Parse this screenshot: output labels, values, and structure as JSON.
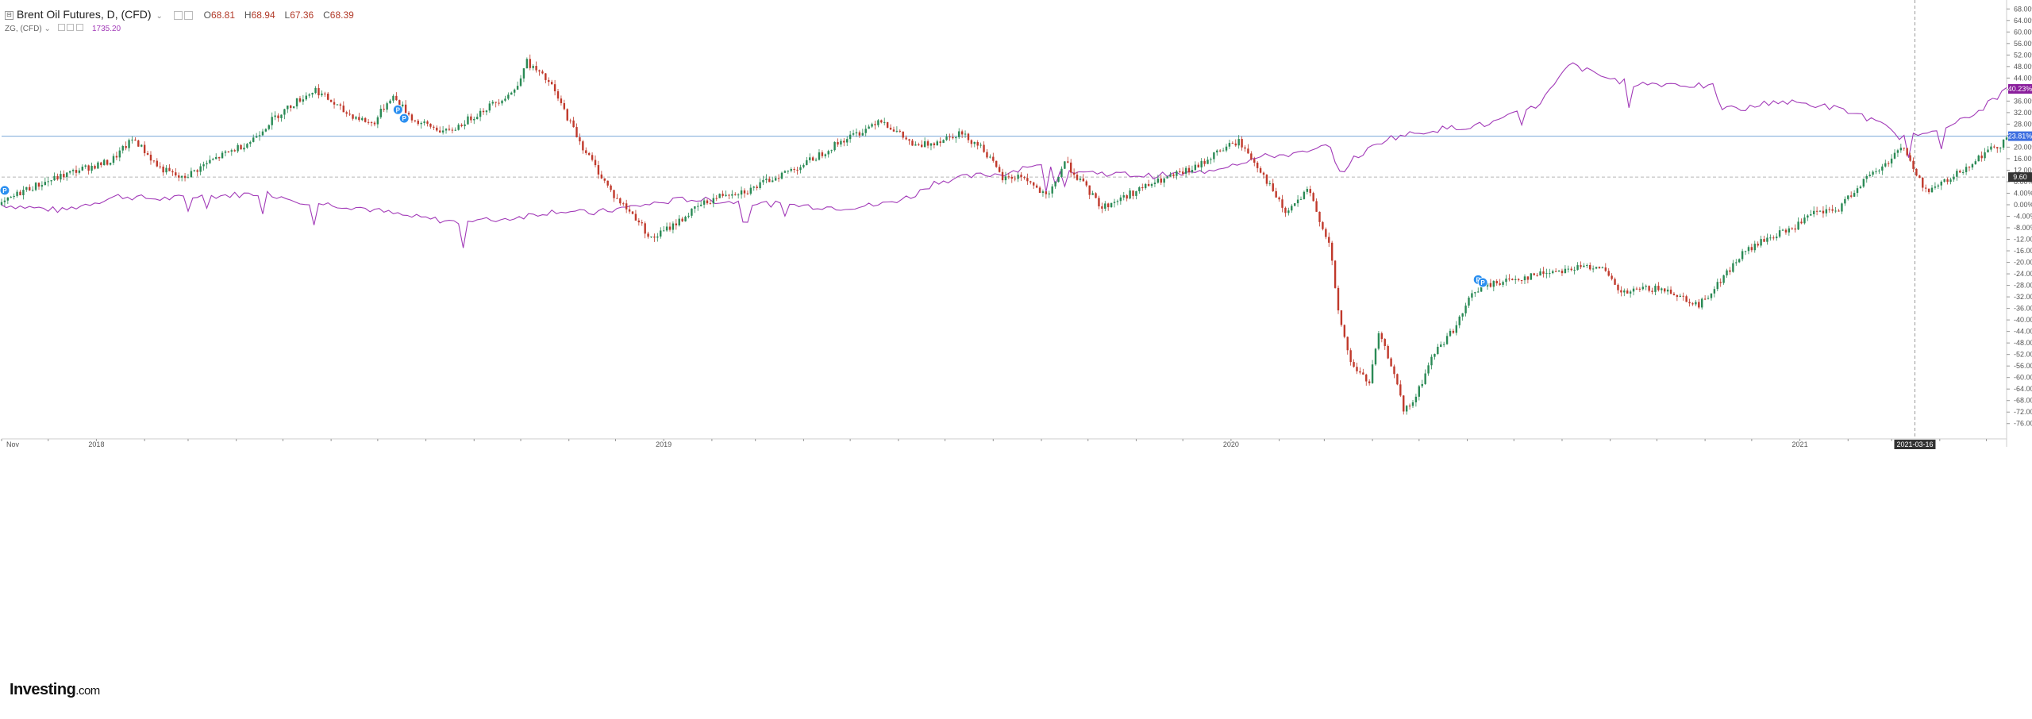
{
  "header": {
    "title": "Brent Oil Futures, D, (CFD)",
    "collapse_symbol": "⊟",
    "ohlc": [
      {
        "label": "O",
        "value": "68.81"
      },
      {
        "label": "H",
        "value": "68.94"
      },
      {
        "label": "L",
        "value": "67.36"
      },
      {
        "label": "C",
        "value": "68.39"
      }
    ],
    "compare_label": "ZG, (CFD)",
    "compare_value": "1735.20"
  },
  "logo": {
    "brand": "Investing",
    "domain": ".com"
  },
  "colors": {
    "up_candle": "#2a8a55",
    "down_candle": "#c0392b",
    "compare_line": "#a23ab8",
    "last_line": "#7aa8d8",
    "badge_blue": "#3d6ee0",
    "badge_purple": "#8a1e9c",
    "badge_dark": "#333333",
    "grid_axis": "#555555",
    "event_marker": "#2b8ff0"
  },
  "chart_data": {
    "type": "candlestick",
    "xlabel": "",
    "ylabel": "",
    "x_range": [
      "2017-11-01",
      "2021-05-14"
    ],
    "ylim": [
      -78,
      70
    ],
    "y_unit": "%",
    "y_ticks": [
      "68.00%",
      "64.00%",
      "60.00%",
      "56.00%",
      "52.00%",
      "48.00%",
      "44.00%",
      "40.00%",
      "36.00%",
      "32.00%",
      "28.00%",
      "24.00%",
      "20.00%",
      "16.00%",
      "12.00%",
      "8.00%",
      "4.00%",
      "0.00%",
      "-4.00%",
      "-8.00%",
      "-12.00%",
      "-16.00%",
      "-20.00%",
      "-24.00%",
      "-28.00%",
      "-32.00%",
      "-36.00%",
      "-40.00%",
      "-44.00%",
      "-48.00%",
      "-52.00%",
      "-56.00%",
      "-60.00%",
      "-64.00%",
      "-68.00%",
      "-72.00%",
      "-76.00%"
    ],
    "x_tick_labels": [
      {
        "date": "2017-11-01",
        "label": "Nov"
      },
      {
        "date": "2018-01-01",
        "label": "2018"
      },
      {
        "date": "2019-01-01",
        "label": "2019"
      },
      {
        "date": "2020-01-01",
        "label": "2020"
      },
      {
        "date": "2021-01-01",
        "label": "2021"
      }
    ],
    "series": [
      {
        "name": "Brent Oil Futures",
        "kind": "candles",
        "anchors": [
          [
            "2017-11-01",
            0
          ],
          [
            "2017-11-15",
            5
          ],
          [
            "2017-12-20",
            12
          ],
          [
            "2018-01-10",
            15
          ],
          [
            "2018-01-25",
            23
          ],
          [
            "2018-02-10",
            13
          ],
          [
            "2018-02-25",
            9
          ],
          [
            "2018-03-15",
            15
          ],
          [
            "2018-04-10",
            22
          ],
          [
            "2018-04-25",
            30
          ],
          [
            "2018-05-10",
            36
          ],
          [
            "2018-05-22",
            40
          ],
          [
            "2018-06-10",
            32
          ],
          [
            "2018-06-28",
            28
          ],
          [
            "2018-07-10",
            38
          ],
          [
            "2018-07-25",
            29
          ],
          [
            "2018-08-15",
            25
          ],
          [
            "2018-09-10",
            34
          ],
          [
            "2018-09-28",
            40
          ],
          [
            "2018-10-04",
            50
          ],
          [
            "2018-10-20",
            42
          ],
          [
            "2018-11-10",
            20
          ],
          [
            "2018-11-30",
            3
          ],
          [
            "2018-12-15",
            -5
          ],
          [
            "2018-12-24",
            -12
          ],
          [
            "2019-01-10",
            -6
          ],
          [
            "2019-01-25",
            0
          ],
          [
            "2019-02-10",
            4
          ],
          [
            "2019-02-25",
            5
          ],
          [
            "2019-03-15",
            10
          ],
          [
            "2019-04-01",
            14
          ],
          [
            "2019-04-25",
            22
          ],
          [
            "2019-05-10",
            26
          ],
          [
            "2019-05-20",
            30
          ],
          [
            "2019-06-12",
            20
          ],
          [
            "2019-06-25",
            22
          ],
          [
            "2019-07-10",
            25
          ],
          [
            "2019-07-25",
            20
          ],
          [
            "2019-08-07",
            9
          ],
          [
            "2019-08-20",
            10
          ],
          [
            "2019-09-05",
            2
          ],
          [
            "2019-09-16",
            15
          ],
          [
            "2019-09-28",
            7
          ],
          [
            "2019-10-10",
            -1
          ],
          [
            "2019-10-25",
            3
          ],
          [
            "2019-11-10",
            7
          ],
          [
            "2019-11-25",
            10
          ],
          [
            "2019-12-10",
            13
          ],
          [
            "2019-12-25",
            19
          ],
          [
            "2020-01-06",
            22
          ],
          [
            "2020-01-20",
            12
          ],
          [
            "2020-02-05",
            -3
          ],
          [
            "2020-02-20",
            5
          ],
          [
            "2020-03-05",
            -15
          ],
          [
            "2020-03-09",
            -35
          ],
          [
            "2020-03-18",
            -55
          ],
          [
            "2020-03-30",
            -62
          ],
          [
            "2020-04-05",
            -45
          ],
          [
            "2020-04-15",
            -58
          ],
          [
            "2020-04-21",
            -72
          ],
          [
            "2020-04-28",
            -68
          ],
          [
            "2020-05-10",
            -52
          ],
          [
            "2020-05-25",
            -42
          ],
          [
            "2020-06-05",
            -30
          ],
          [
            "2020-06-20",
            -27
          ],
          [
            "2020-07-10",
            -25
          ],
          [
            "2020-07-25",
            -23
          ],
          [
            "2020-08-10",
            -22
          ],
          [
            "2020-08-25",
            -21
          ],
          [
            "2020-09-08",
            -31
          ],
          [
            "2020-09-25",
            -29
          ],
          [
            "2020-10-10",
            -30
          ],
          [
            "2020-10-28",
            -35
          ],
          [
            "2020-11-10",
            -27
          ],
          [
            "2020-11-25",
            -17
          ],
          [
            "2020-12-10",
            -12
          ],
          [
            "2020-12-28",
            -8
          ],
          [
            "2021-01-10",
            -3
          ],
          [
            "2021-01-25",
            -2
          ],
          [
            "2021-02-10",
            8
          ],
          [
            "2021-02-25",
            14
          ],
          [
            "2021-03-08",
            21
          ],
          [
            "2021-03-16",
            11
          ],
          [
            "2021-03-23",
            5
          ],
          [
            "2021-04-05",
            8
          ],
          [
            "2021-04-20",
            14
          ],
          [
            "2021-04-30",
            18
          ],
          [
            "2021-05-10",
            21
          ],
          [
            "2021-05-14",
            23.81
          ]
        ],
        "last_value": "23.81%"
      },
      {
        "name": "ZG",
        "kind": "line",
        "anchors": [
          [
            "2017-11-01",
            0
          ],
          [
            "2017-12-10",
            -2
          ],
          [
            "2018-01-15",
            3
          ],
          [
            "2018-02-10",
            2
          ],
          [
            "2018-03-15",
            3
          ],
          [
            "2018-04-20",
            4
          ],
          [
            "2018-05-15",
            1
          ],
          [
            "2018-06-20",
            -1
          ],
          [
            "2018-07-20",
            -4
          ],
          [
            "2018-08-20",
            -6
          ],
          [
            "2018-09-20",
            -5
          ],
          [
            "2018-10-25",
            -2
          ],
          [
            "2018-11-15",
            -3
          ],
          [
            "2018-12-20",
            0
          ],
          [
            "2019-01-15",
            2
          ],
          [
            "2019-02-15",
            1
          ],
          [
            "2019-03-20",
            0
          ],
          [
            "2019-04-25",
            -1
          ],
          [
            "2019-05-20",
            0
          ],
          [
            "2019-06-10",
            3
          ],
          [
            "2019-06-25",
            8
          ],
          [
            "2019-07-20",
            10
          ],
          [
            "2019-08-10",
            11
          ],
          [
            "2019-08-25",
            14
          ],
          [
            "2019-09-10",
            12
          ],
          [
            "2019-10-10",
            11
          ],
          [
            "2019-11-10",
            10
          ],
          [
            "2019-12-10",
            11
          ],
          [
            "2020-01-08",
            15
          ],
          [
            "2020-01-25",
            17
          ],
          [
            "2020-02-20",
            18
          ],
          [
            "2020-03-05",
            21
          ],
          [
            "2020-03-10",
            10
          ],
          [
            "2020-03-20",
            16
          ],
          [
            "2020-04-10",
            23
          ],
          [
            "2020-05-10",
            26
          ],
          [
            "2020-06-15",
            28
          ],
          [
            "2020-07-15",
            34
          ],
          [
            "2020-07-28",
            42
          ],
          [
            "2020-08-06",
            49
          ],
          [
            "2020-08-15",
            47
          ],
          [
            "2020-08-30",
            44
          ],
          [
            "2020-09-15",
            42
          ],
          [
            "2020-10-10",
            42
          ],
          [
            "2020-11-06",
            41
          ],
          [
            "2020-11-10",
            34
          ],
          [
            "2020-11-25",
            33
          ],
          [
            "2020-12-15",
            36
          ],
          [
            "2021-01-05",
            35
          ],
          [
            "2021-01-20",
            34
          ],
          [
            "2021-02-10",
            31
          ],
          [
            "2021-02-25",
            27
          ],
          [
            "2021-03-08",
            23
          ],
          [
            "2021-03-25",
            26
          ],
          [
            "2021-04-20",
            30
          ],
          [
            "2021-05-14",
            40.23
          ]
        ],
        "last_value": "40.23%"
      }
    ],
    "reference_line": {
      "value": 9.6,
      "label": "9.60"
    },
    "crosshair": {
      "date": "2021-03-16",
      "label": "2021-03-16"
    },
    "event_markers": [
      {
        "date": "2017-11-03",
        "value": 5,
        "label": "P"
      },
      {
        "date": "2018-07-14",
        "value": 33,
        "label": "P"
      },
      {
        "date": "2018-07-18",
        "value": 30,
        "label": "P"
      },
      {
        "date": "2020-06-08",
        "value": -26,
        "label": "P"
      },
      {
        "date": "2020-06-11",
        "value": -27,
        "label": "P"
      }
    ],
    "grid": false,
    "legend": "top-left"
  }
}
